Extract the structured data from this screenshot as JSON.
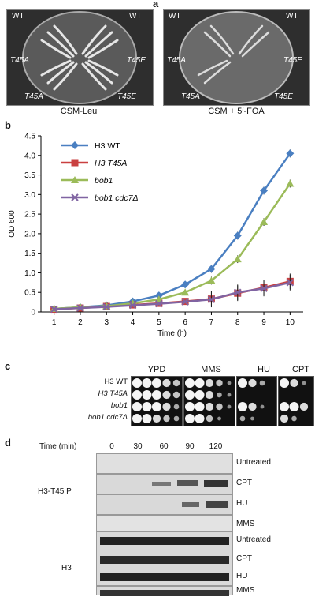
{
  "panel_a": {
    "letter": "a",
    "plate1": {
      "caption": "CSM-Leu",
      "labels": [
        "WT",
        "WT",
        "T45A",
        "T45E",
        "T45A",
        "T45E"
      ]
    },
    "plate2": {
      "caption": "CSM + 5′-FOA",
      "labels": [
        "WT",
        "WT",
        "T45A",
        "T45E",
        "T45A",
        "T45E"
      ]
    }
  },
  "panel_b": {
    "letter": "b",
    "chart_data": {
      "type": "line",
      "xlabel": "Time (h)",
      "ylabel": "OD 600",
      "x": [
        1,
        2,
        3,
        4,
        5,
        6,
        7,
        8,
        9,
        10
      ],
      "ylim": [
        0,
        4.5
      ],
      "yticks": [
        "0",
        "0.5",
        "1.0",
        "1.5",
        "2.0",
        "2.5",
        "3.0",
        "3.5",
        "4.0",
        "4.5"
      ],
      "xticks": [
        "1",
        "2",
        "3",
        "4",
        "5",
        "6",
        "7",
        "8",
        "9",
        "10"
      ],
      "legend_position": "top-left",
      "series": [
        {
          "name": "H3 WT",
          "color": "#4a7fc1",
          "marker": "diamond",
          "values": [
            0.08,
            0.12,
            0.17,
            0.27,
            0.42,
            0.7,
            1.1,
            1.95,
            3.1,
            4.05
          ]
        },
        {
          "name": "H3 T45A",
          "color": "#c94040",
          "marker": "square",
          "values": [
            0.07,
            0.1,
            0.14,
            0.18,
            0.22,
            0.27,
            0.33,
            0.48,
            0.62,
            0.78
          ]
        },
        {
          "name": "bob1",
          "color": "#9bbb59",
          "marker": "triangle",
          "values": [
            0.08,
            0.12,
            0.15,
            0.22,
            0.32,
            0.5,
            0.8,
            1.35,
            2.3,
            3.28
          ]
        },
        {
          "name": "bob1 cdc7Δ",
          "color": "#8064a2",
          "marker": "cross",
          "values": [
            0.07,
            0.1,
            0.13,
            0.17,
            0.21,
            0.26,
            0.32,
            0.5,
            0.6,
            0.75
          ]
        }
      ]
    }
  },
  "panel_c": {
    "letter": "c",
    "columns": [
      "YPD",
      "MMS",
      "HU",
      "CPT"
    ],
    "rows": [
      "H3 WT",
      "H3 T45A",
      "bob1",
      "bob1 cdc7Δ"
    ]
  },
  "panel_d": {
    "letter": "d",
    "time_label": "Time (min)",
    "times": [
      "0",
      "30",
      "60",
      "90",
      "120"
    ],
    "group1": "H3-T45 P",
    "group2": "H3",
    "conditions": [
      "Untreated",
      "CPT",
      "HU",
      "MMS"
    ]
  }
}
